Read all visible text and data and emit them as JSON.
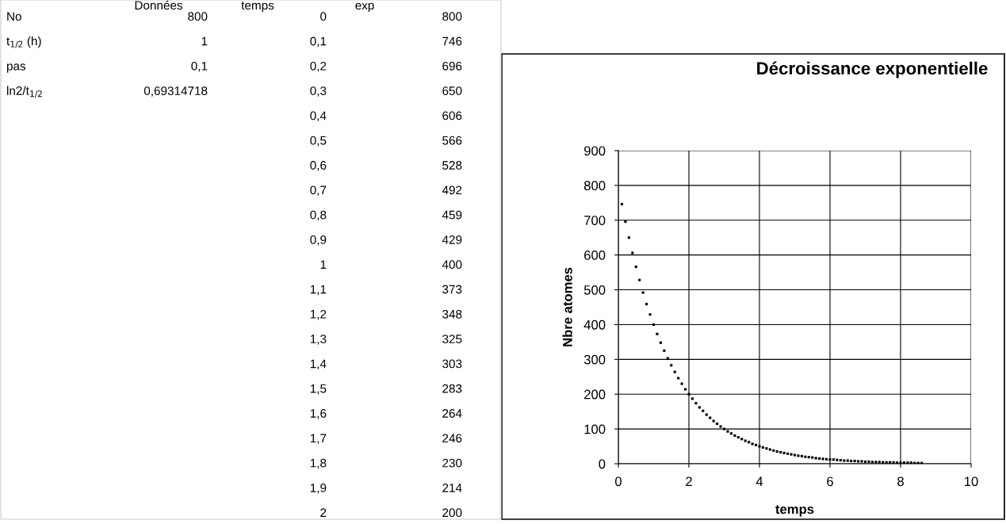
{
  "chart_data": {
    "type": "scatter",
    "title": "Décroissance exponentielle",
    "xlabel": "temps",
    "ylabel": "Nbre atomes",
    "marker": "square",
    "grid": true,
    "xlim": [
      0,
      10
    ],
    "xticks": [
      0,
      2,
      4,
      6,
      8,
      10
    ],
    "ylim": [
      0,
      900
    ],
    "yticks": [
      0,
      100,
      200,
      300,
      400,
      500,
      600,
      700,
      800,
      900
    ],
    "series": [
      {
        "color": "#ff0000",
        "x": [
          0
        ],
        "values": [
          0
        ]
      },
      {
        "color": "#000000",
        "x": [
          0.1,
          0.2,
          0.3,
          0.4,
          0.5,
          0.6,
          0.7,
          0.8,
          0.9,
          1,
          1.1,
          1.2,
          1.3,
          1.4,
          1.5,
          1.6,
          1.7,
          1.8,
          1.9,
          2,
          2.1,
          2.2,
          2.3,
          2.4,
          2.5,
          2.6,
          2.7,
          2.8,
          2.9,
          3,
          3.1,
          3.2,
          3.3,
          3.4,
          3.5,
          3.6,
          3.7,
          3.8,
          3.9,
          4,
          4.1,
          4.2,
          4.3,
          4.4,
          4.5,
          4.6,
          4.7,
          4.8,
          4.9,
          5,
          5.1,
          5.2,
          5.3,
          5.4,
          5.5,
          5.6,
          5.7,
          5.8,
          5.9,
          6,
          6.1,
          6.2,
          6.3,
          6.4,
          6.5,
          6.6,
          6.7,
          6.8,
          6.9,
          7,
          7.1,
          7.2,
          7.3,
          7.4,
          7.5,
          7.6,
          7.7,
          7.8,
          7.9,
          8,
          8.1,
          8.2,
          8.3,
          8.4,
          8.5,
          8.6
        ],
        "values": [
          746,
          696,
          650,
          606,
          566,
          528,
          492,
          459,
          429,
          400,
          373,
          348,
          325,
          303,
          283,
          264,
          246,
          230,
          214,
          200,
          187,
          174,
          162,
          152,
          141,
          132,
          123,
          115,
          107,
          100,
          93,
          87,
          81,
          76,
          71,
          66,
          62,
          57,
          54,
          50,
          47,
          44,
          41,
          38,
          35,
          33,
          31,
          29,
          27,
          25,
          23,
          22,
          20,
          19,
          18,
          16,
          15,
          14,
          13,
          12,
          12,
          11,
          10,
          9,
          9,
          8,
          8,
          7,
          7,
          6,
          6,
          5,
          5,
          5,
          4,
          4,
          4,
          4,
          3,
          3,
          3,
          3,
          3,
          2,
          2,
          2
        ]
      }
    ],
    "annotations": [
      "Données",
      "temps",
      "exp",
      "No",
      "800",
      "t$_{1/2}$ (h)",
      "1",
      "pas",
      "0,1",
      "ln2/t$_{1/2}$",
      "0,69314718",
      "0",
      "800",
      "0,1",
      "746",
      "0,2",
      "696",
      "0,3",
      "650",
      "0,4",
      "606",
      "0,5",
      "566",
      "0,6",
      "528",
      "0,7",
      "492",
      "0,8",
      "459",
      "0,9",
      "429",
      "1",
      "400",
      "1,1",
      "373",
      "1,2",
      "348",
      "1,3",
      "325",
      "1,4",
      "303",
      "1,5",
      "283",
      "1,6",
      "264",
      "1,7",
      "246",
      "1,8",
      "230",
      "1,9",
      "214",
      "2",
      "200"
    ]
  }
}
